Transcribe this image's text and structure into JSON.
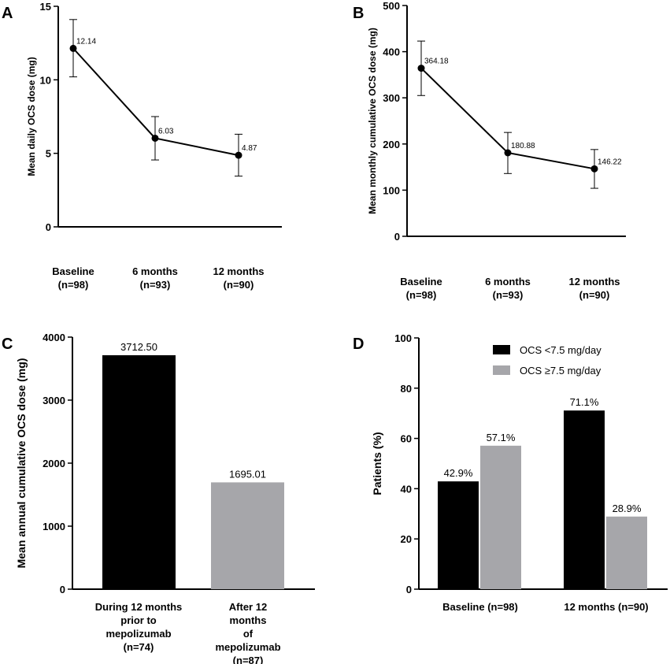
{
  "chart_data": [
    {
      "panel": "A",
      "type": "line",
      "ylabel": "Mean daily OCS dose (mg)",
      "ylim": [
        0,
        15
      ],
      "yticks": [
        "0",
        "5",
        "10",
        "15"
      ],
      "categories": [
        "Baseline\n(n=98)",
        "6 months\n(n=93)",
        "12 months\n(n=90)"
      ],
      "values": [
        12.14,
        6.03,
        4.87
      ],
      "value_labels": [
        "12.14",
        "6.03",
        "4.87"
      ],
      "error_low": [
        10.2,
        4.55,
        3.45
      ],
      "error_high": [
        14.1,
        7.5,
        6.3
      ]
    },
    {
      "panel": "B",
      "type": "line",
      "ylabel": "Mean monthly cumulative OCS dose (mg)",
      "ylim": [
        0,
        500
      ],
      "yticks": [
        "0",
        "100",
        "200",
        "300",
        "400",
        "500"
      ],
      "categories": [
        "Baseline\n(n=98)",
        "6 months\n(n=93)",
        "12 months\n(n=90)"
      ],
      "values": [
        364.18,
        180.88,
        146.22
      ],
      "value_labels": [
        "364.18",
        "180.88",
        "146.22"
      ],
      "error_low": [
        305,
        136,
        104
      ],
      "error_high": [
        423,
        225,
        188
      ]
    },
    {
      "panel": "C",
      "type": "bar",
      "ylabel": "Mean annual cumulative OCS dose (mg)",
      "ylim": [
        0,
        4000
      ],
      "yticks": [
        "0",
        "1000",
        "2000",
        "3000",
        "4000"
      ],
      "categories": [
        "During 12 months\nprior to\nmepolizumab\n(n=74)",
        "After 12\nmonths\nof\nmepolizumab\n(n=87)"
      ],
      "values": [
        3712.5,
        1695.01
      ],
      "value_labels": [
        "3712.50",
        "1695.01"
      ],
      "colors": [
        "#000000",
        "#a6a6aa"
      ]
    },
    {
      "panel": "D",
      "type": "bar",
      "ylabel": "Patients (%)",
      "ylim": [
        0,
        100
      ],
      "yticks": [
        "0",
        "20",
        "40",
        "60",
        "80",
        "100"
      ],
      "categories": [
        "Baseline (n=98)",
        "12 months (n=90)"
      ],
      "series": [
        {
          "name": "OCS <7.5 mg/day",
          "color": "#000000",
          "values": [
            42.9,
            71.1
          ],
          "value_labels": [
            "42.9%",
            "71.1%"
          ]
        },
        {
          "name": "OCS ≥7.5 mg/day",
          "color": "#a6a6aa",
          "values": [
            57.1,
            28.9
          ],
          "value_labels": [
            "57.1%",
            "28.9%"
          ]
        }
      ],
      "legend": "top-right"
    }
  ]
}
